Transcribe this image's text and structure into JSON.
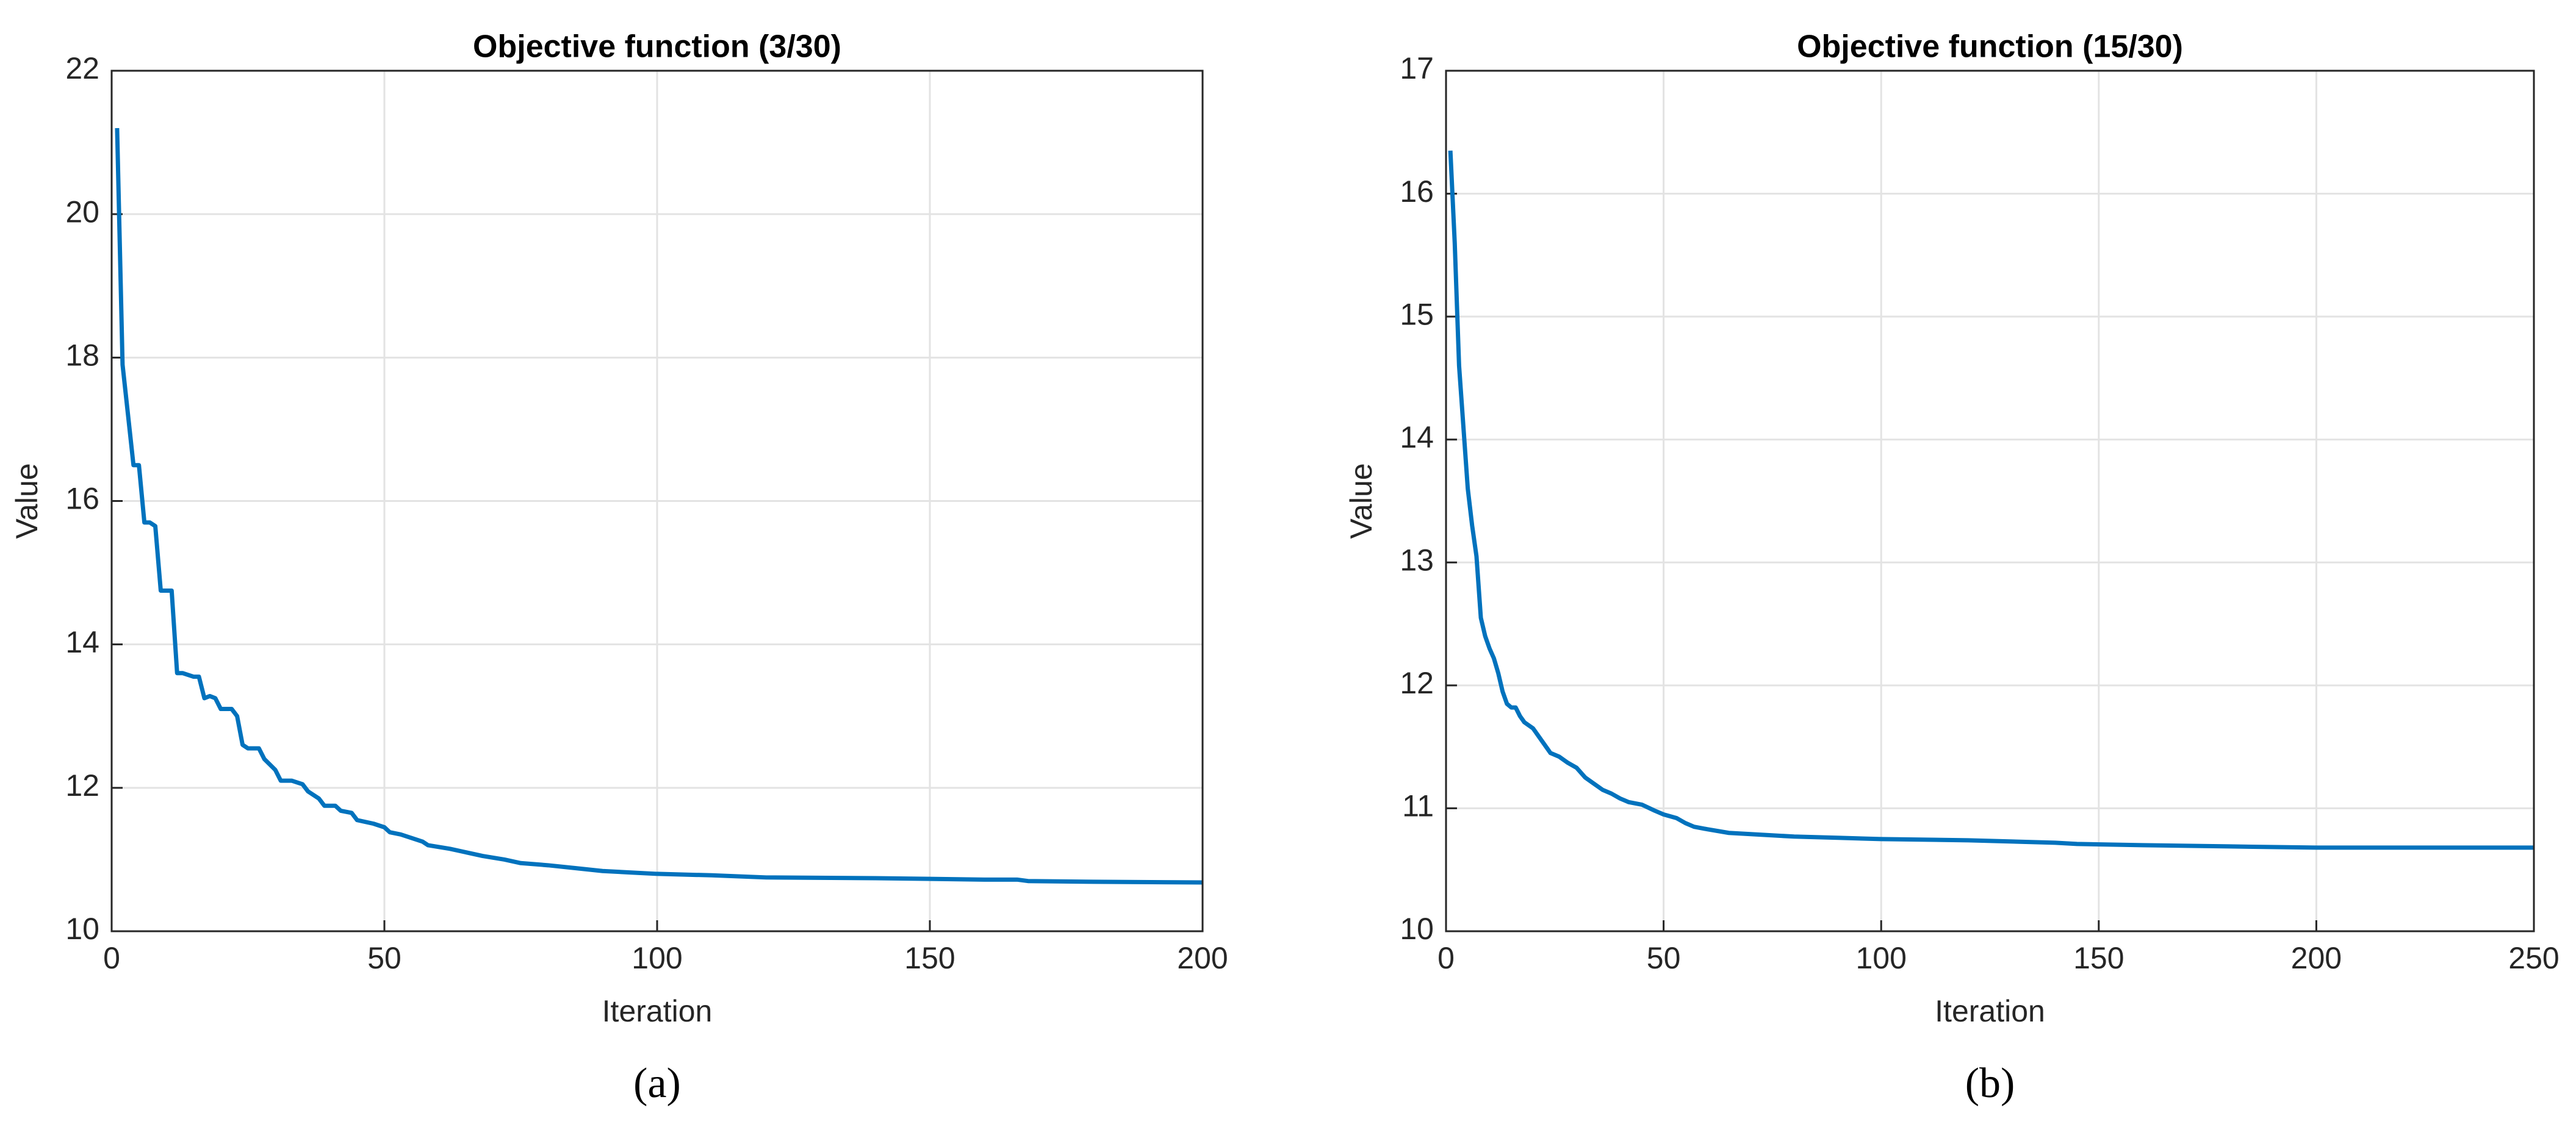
{
  "chart_data": [
    {
      "type": "line",
      "title": "Objective function (3/30)",
      "xlabel": "Iteration",
      "ylabel": "Value",
      "caption": "(a)",
      "xlim": [
        0,
        200
      ],
      "ylim": [
        10,
        22
      ],
      "xticks": [
        0,
        50,
        100,
        150,
        200
      ],
      "yticks": [
        10,
        12,
        14,
        16,
        18,
        20,
        22
      ],
      "grid": true,
      "series": [
        {
          "color": "#0072bd",
          "x": [
            1,
            2,
            3,
            4,
            5,
            6,
            7,
            8,
            9,
            10,
            11,
            12,
            13,
            15,
            16,
            17,
            18,
            19,
            20,
            22,
            23,
            24,
            25,
            27,
            28,
            30,
            31,
            33,
            35,
            36,
            38,
            39,
            41,
            42,
            44,
            45,
            48,
            50,
            51,
            53,
            55,
            57,
            58,
            62,
            65,
            68,
            72,
            75,
            80,
            85,
            90,
            95,
            100,
            110,
            120,
            140,
            160,
            166,
            168,
            180,
            200
          ],
          "values": [
            21.2,
            17.9,
            17.2,
            16.5,
            16.5,
            15.7,
            15.7,
            15.65,
            14.75,
            14.75,
            14.75,
            13.6,
            13.6,
            13.55,
            13.55,
            13.25,
            13.28,
            13.25,
            13.1,
            13.1,
            13.0,
            12.6,
            12.55,
            12.55,
            12.4,
            12.25,
            12.1,
            12.1,
            12.05,
            11.95,
            11.85,
            11.75,
            11.75,
            11.68,
            11.65,
            11.55,
            11.5,
            11.45,
            11.38,
            11.35,
            11.3,
            11.25,
            11.2,
            11.15,
            11.1,
            11.05,
            11.0,
            10.95,
            10.92,
            10.88,
            10.84,
            10.82,
            10.8,
            10.78,
            10.75,
            10.74,
            10.72,
            10.72,
            10.7,
            10.69,
            10.68
          ]
        }
      ]
    },
    {
      "type": "line",
      "title": "Objective function (15/30)",
      "xlabel": "Iteration",
      "ylabel": "Value",
      "caption": "(b)",
      "xlim": [
        0,
        250
      ],
      "ylim": [
        10,
        17
      ],
      "xticks": [
        0,
        50,
        100,
        150,
        200,
        250
      ],
      "yticks": [
        10,
        11,
        12,
        13,
        14,
        15,
        16,
        17
      ],
      "grid": true,
      "series": [
        {
          "color": "#0072bd",
          "x": [
            1,
            2,
            3,
            4,
            5,
            6,
            7,
            8,
            9,
            10,
            11,
            12,
            13,
            14,
            15,
            16,
            17,
            18,
            20,
            22,
            24,
            26,
            28,
            30,
            32,
            34,
            36,
            38,
            40,
            42,
            45,
            48,
            50,
            53,
            55,
            57,
            60,
            65,
            70,
            80,
            90,
            100,
            120,
            140,
            145,
            160,
            180,
            200,
            250
          ],
          "values": [
            16.35,
            15.6,
            14.6,
            14.1,
            13.6,
            13.3,
            13.05,
            12.55,
            12.4,
            12.3,
            12.22,
            12.1,
            11.95,
            11.85,
            11.82,
            11.82,
            11.75,
            11.7,
            11.65,
            11.55,
            11.45,
            11.42,
            11.37,
            11.33,
            11.25,
            11.2,
            11.15,
            11.12,
            11.08,
            11.05,
            11.03,
            10.98,
            10.95,
            10.92,
            10.88,
            10.85,
            10.83,
            10.8,
            10.79,
            10.77,
            10.76,
            10.75,
            10.74,
            10.72,
            10.71,
            10.7,
            10.69,
            10.68,
            10.68
          ]
        }
      ]
    }
  ]
}
